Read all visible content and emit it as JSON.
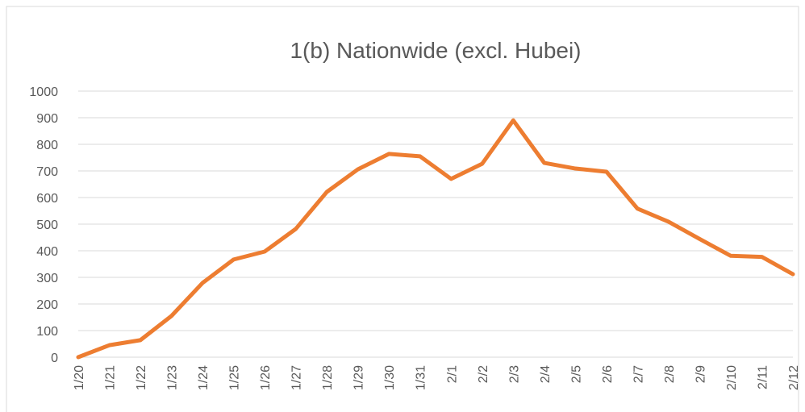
{
  "chart_data": {
    "type": "line",
    "title": "1(b) Nationwide (excl. Hubei)",
    "categories": [
      "1/20",
      "1/21",
      "1/22",
      "1/23",
      "1/24",
      "1/25",
      "1/26",
      "1/27",
      "1/28",
      "1/29",
      "1/30",
      "1/31",
      "2/1",
      "2/2",
      "2/3",
      "2/4",
      "2/5",
      "2/6",
      "2/7",
      "2/8",
      "2/9",
      "2/10",
      "2/11",
      "2/12"
    ],
    "series": [
      {
        "name": "Nationwide (excl. Hubei)",
        "color": "#ed7d31",
        "values": [
          0,
          45,
          64,
          155,
          279,
          367,
          397,
          482,
          621,
          706,
          764,
          755,
          670,
          727,
          890,
          730,
          709,
          697,
          558,
          509,
          444,
          381,
          377,
          312
        ]
      }
    ],
    "ylim": [
      0,
      1000
    ],
    "yticks": [
      0,
      100,
      200,
      300,
      400,
      500,
      600,
      700,
      800,
      900,
      1000
    ],
    "grid": true
  }
}
